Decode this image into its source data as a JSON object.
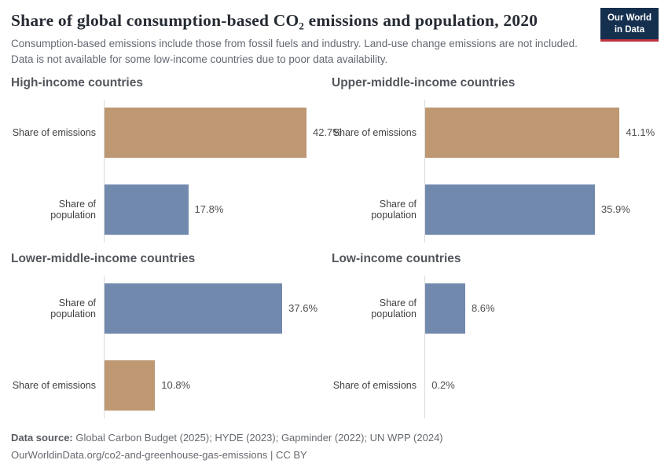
{
  "header": {
    "title": "Share of global consumption-based CO₂ emissions and population, 2020",
    "subtitle": "Consumption-based emissions include those from fossil fuels and industry. Land-use change emissions are not included. Data is not available for some low-income countries due to poor data availability.",
    "logo": {
      "line1": "Our World",
      "line2": "in Data",
      "bg_color": "#15304f",
      "accent_color": "#c0343f"
    }
  },
  "chart_layout": {
    "type": "bar",
    "orientation": "horizontal",
    "xmax": 48,
    "grid": false,
    "legend": "none",
    "emissions_color": "#bd9873",
    "population_color": "#7289ae"
  },
  "chart_data": [
    {
      "type": "bar",
      "title": "High-income countries",
      "rows": [
        {
          "label": "Share of emissions",
          "value": 42.7,
          "display": "42.7%",
          "color": "#bd9873"
        },
        {
          "label": "Share of population",
          "value": 17.8,
          "display": "17.8%",
          "color": "#7289ae"
        }
      ]
    },
    {
      "type": "bar",
      "title": "Upper-middle-income countries",
      "rows": [
        {
          "label": "Share of emissions",
          "value": 41.1,
          "display": "41.1%",
          "color": "#bd9873"
        },
        {
          "label": "Share of population",
          "value": 35.9,
          "display": "35.9%",
          "color": "#7289ae"
        }
      ]
    },
    {
      "type": "bar",
      "title": "Lower-middle-income countries",
      "rows": [
        {
          "label": "Share of population",
          "value": 37.6,
          "display": "37.6%",
          "color": "#7289ae"
        },
        {
          "label": "Share of emissions",
          "value": 10.8,
          "display": "10.8%",
          "color": "#bd9873"
        }
      ]
    },
    {
      "type": "bar",
      "title": "Low-income countries",
      "rows": [
        {
          "label": "Share of population",
          "value": 8.6,
          "display": "8.6%",
          "color": "#7289ae"
        },
        {
          "label": "Share of emissions",
          "value": 0.2,
          "display": "0.2%",
          "color": "#bd9873"
        }
      ]
    }
  ],
  "footer": {
    "source_label": "Data source:",
    "source_text": " Global Carbon Budget (2025); HYDE (2023); Gapminder (2022); UN WPP (2024)",
    "link_text": "OurWorldinData.org/co2-and-greenhouse-gas-emissions | CC BY"
  }
}
